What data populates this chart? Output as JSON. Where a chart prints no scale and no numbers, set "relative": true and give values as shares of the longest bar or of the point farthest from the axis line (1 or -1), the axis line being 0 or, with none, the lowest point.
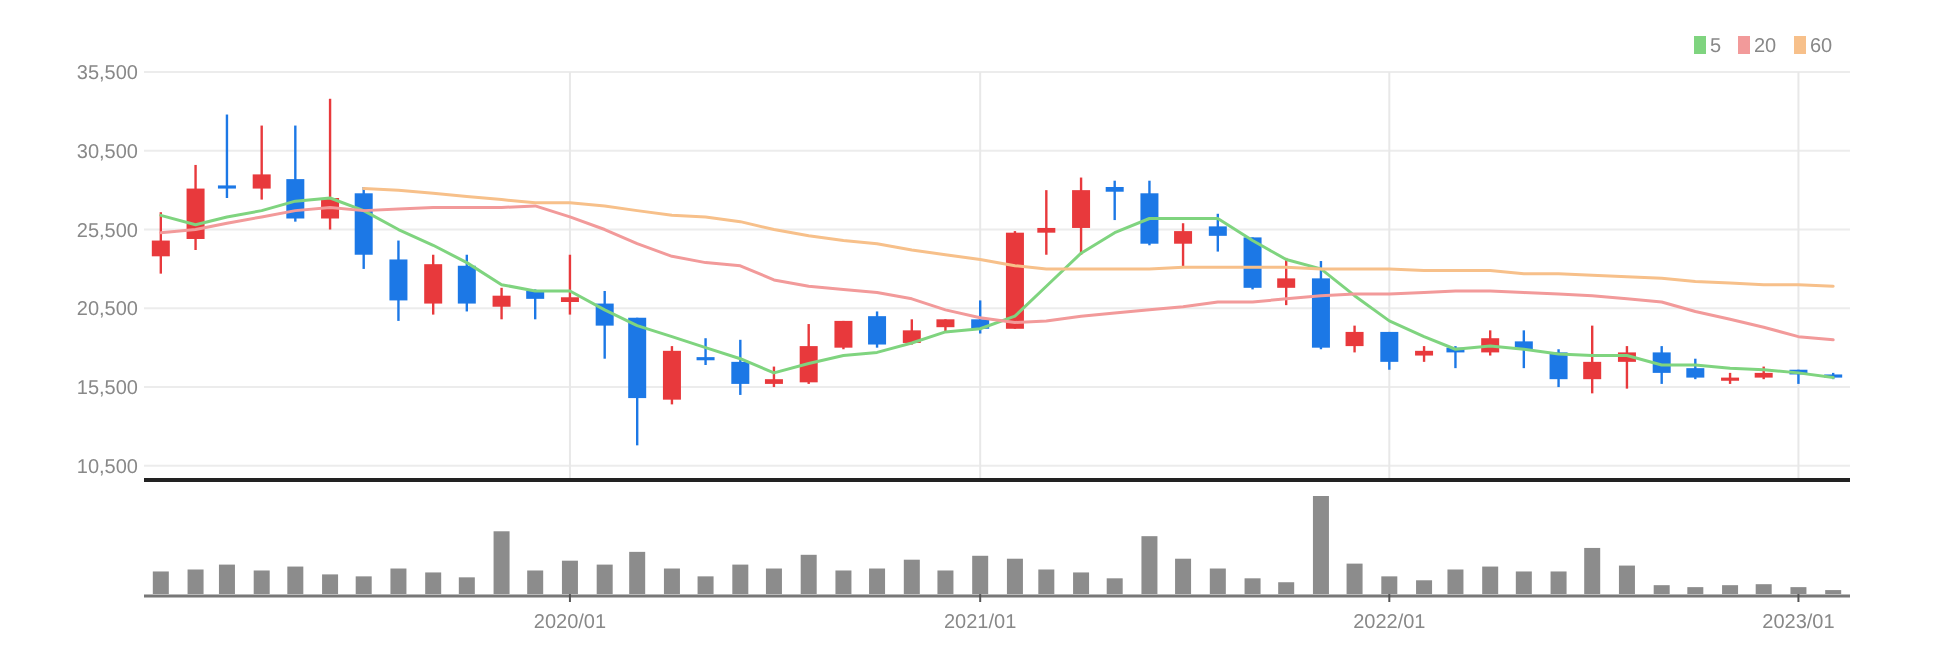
{
  "chart_data": [
    {
      "type": "candlestick",
      "x": [
        "2019-01",
        "2019-02",
        "2019-03",
        "2019-04",
        "2019-05",
        "2019-06",
        "2019-07",
        "2019-08",
        "2019-09",
        "2019-10",
        "2019-11",
        "2019-12",
        "2020-01",
        "2020-02",
        "2020-03",
        "2020-04",
        "2020-05",
        "2020-06",
        "2020-07",
        "2020-08",
        "2020-09",
        "2020-10",
        "2020-11",
        "2020-12",
        "2021-01",
        "2021-02",
        "2021-03",
        "2021-04",
        "2021-05",
        "2021-06",
        "2021-07",
        "2021-08",
        "2021-09",
        "2021-10",
        "2021-11",
        "2021-12",
        "2022-01",
        "2022-02",
        "2022-03",
        "2022-04",
        "2022-05",
        "2022-06",
        "2022-07",
        "2022-08",
        "2022-09",
        "2022-10",
        "2022-11",
        "2022-12",
        "2023-01",
        "2023-02"
      ],
      "ohlc": [
        [
          23800,
          26600,
          22700,
          24800
        ],
        [
          24900,
          29600,
          24200,
          28100
        ],
        [
          28300,
          32800,
          27500,
          28100
        ],
        [
          28100,
          32100,
          27400,
          29000
        ],
        [
          28700,
          32100,
          26000,
          26200
        ],
        [
          26200,
          33800,
          25500,
          27500
        ],
        [
          27800,
          28200,
          23000,
          23900
        ],
        [
          23600,
          24800,
          19700,
          21000
        ],
        [
          20800,
          23900,
          20100,
          23300
        ],
        [
          23200,
          23900,
          20300,
          20800
        ],
        [
          20600,
          21800,
          19800,
          21300
        ],
        [
          21600,
          21700,
          19800,
          21100
        ],
        [
          20900,
          23900,
          20100,
          21200
        ],
        [
          20800,
          21600,
          17300,
          19400
        ],
        [
          19900,
          19900,
          11800,
          14800
        ],
        [
          14700,
          18100,
          14400,
          17800
        ],
        [
          17400,
          18600,
          16900,
          17200
        ],
        [
          17100,
          18500,
          15000,
          15700
        ],
        [
          15700,
          16800,
          15500,
          16000
        ],
        [
          15800,
          19500,
          15700,
          18100
        ],
        [
          18000,
          19700,
          17900,
          19700
        ],
        [
          20000,
          20300,
          18000,
          18200
        ],
        [
          18300,
          19800,
          18200,
          19100
        ],
        [
          19300,
          19800,
          19000,
          19800
        ],
        [
          19800,
          21000,
          18900,
          19200
        ],
        [
          19200,
          25400,
          19200,
          25300
        ],
        [
          25300,
          28000,
          23900,
          25600
        ],
        [
          25600,
          28800,
          23900,
          28000
        ],
        [
          28200,
          28600,
          26100,
          27900
        ],
        [
          27800,
          28600,
          24500,
          24600
        ],
        [
          24600,
          25900,
          23100,
          25400
        ],
        [
          25700,
          26500,
          24100,
          25100
        ],
        [
          25000,
          25000,
          21700,
          21800
        ],
        [
          21800,
          23700,
          20700,
          22400
        ],
        [
          22400,
          23500,
          17900,
          18000
        ],
        [
          18100,
          19400,
          17700,
          19000
        ],
        [
          19000,
          19000,
          16600,
          17100
        ],
        [
          17500,
          18100,
          17100,
          17800
        ],
        [
          18000,
          18100,
          16700,
          17700
        ],
        [
          17700,
          19100,
          17500,
          18600
        ],
        [
          18400,
          19100,
          16700,
          17900
        ],
        [
          17700,
          17900,
          15500,
          16000
        ],
        [
          16000,
          19400,
          15100,
          17100
        ],
        [
          17100,
          18100,
          15400,
          17700
        ],
        [
          17700,
          18100,
          15700,
          16400
        ],
        [
          16700,
          17300,
          16000,
          16100
        ],
        [
          15900,
          16400,
          15700,
          16100
        ],
        [
          16100,
          16800,
          16000,
          16400
        ],
        [
          16600,
          16600,
          15700,
          16300
        ],
        [
          16300,
          16400,
          16000,
          16100
        ]
      ],
      "series": [
        {
          "type": "line",
          "name": "5",
          "color": "#7fd47f",
          "values": [
            26400,
            25800,
            26300,
            26700,
            27300,
            27500,
            26700,
            25500,
            24500,
            23400,
            22000,
            21600,
            21600,
            20400,
            19400,
            18700,
            18000,
            17300,
            16400,
            17000,
            17500,
            17700,
            18300,
            19000,
            19200,
            20000,
            21900,
            24000,
            25300,
            26200,
            26200,
            26200,
            24800,
            23600,
            23000,
            21300,
            19700,
            18700,
            17900,
            18100,
            17900,
            17600,
            17500,
            17500,
            16900,
            16900,
            16700,
            16600,
            16400,
            16100
          ]
        },
        {
          "type": "line",
          "name": "20",
          "color": "#f29a9a",
          "values": [
            25300,
            25500,
            25900,
            26300,
            26700,
            26900,
            26700,
            26800,
            26900,
            26900,
            26900,
            27000,
            26300,
            25500,
            24600,
            23800,
            23400,
            23200,
            22300,
            21900,
            21700,
            21500,
            21100,
            20400,
            19900,
            19600,
            19700,
            20000,
            20200,
            20400,
            20600,
            20900,
            20900,
            21100,
            21300,
            21400,
            21400,
            21500,
            21600,
            21600,
            21500,
            21400,
            21300,
            21100,
            20900,
            20300,
            19800,
            19300,
            18700,
            18500
          ]
        },
        {
          "type": "line",
          "name": "60",
          "color": "#f7c08a",
          "values": [
            null,
            null,
            null,
            null,
            null,
            null,
            28100,
            28000,
            27800,
            27600,
            27400,
            27200,
            27200,
            27000,
            26700,
            26400,
            26300,
            26000,
            25500,
            25100,
            24800,
            24600,
            24200,
            23900,
            23600,
            23200,
            23000,
            23000,
            23000,
            23000,
            23100,
            23100,
            23100,
            23100,
            23000,
            23000,
            23000,
            22900,
            22900,
            22900,
            22700,
            22700,
            22600,
            22500,
            22400,
            22200,
            22100,
            22000,
            22000,
            21900
          ]
        }
      ],
      "xlim": [
        "2018-12-17",
        "2023-02-16"
      ],
      "xticks": [
        {
          "value": "2020-01",
          "label": null
        },
        {
          "value": "2021-01",
          "label": null
        },
        {
          "value": "2022-01",
          "label": null
        },
        {
          "value": "2023-01",
          "label": null
        }
      ],
      "ylim": [
        9600,
        35500
      ],
      "yticks": [
        {
          "value": 10500,
          "label": "10,500"
        },
        {
          "value": 15500,
          "label": "15,500"
        },
        {
          "value": 20500,
          "label": "20,500"
        },
        {
          "value": 25500,
          "label": "25,500"
        },
        {
          "value": 30500,
          "label": "30,500"
        },
        {
          "value": 35500,
          "label": "35,500"
        }
      ],
      "grid": true,
      "legend": "top right",
      "tick_labels": "y"
    },
    {
      "type": "bar",
      "relative": true,
      "color": "#8c8c8c",
      "x": [
        "2019-01",
        "2019-02",
        "2019-03",
        "2019-04",
        "2019-05",
        "2019-06",
        "2019-07",
        "2019-08",
        "2019-09",
        "2019-10",
        "2019-11",
        "2019-12",
        "2020-01",
        "2020-02",
        "2020-03",
        "2020-04",
        "2020-05",
        "2020-06",
        "2020-07",
        "2020-08",
        "2020-09",
        "2020-10",
        "2020-11",
        "2020-12",
        "2021-01",
        "2021-02",
        "2021-03",
        "2021-04",
        "2021-05",
        "2021-06",
        "2021-07",
        "2021-08",
        "2021-09",
        "2021-10",
        "2021-11",
        "2021-12",
        "2022-01",
        "2022-02",
        "2022-03",
        "2022-04",
        "2022-05",
        "2022-06",
        "2022-07",
        "2022-08",
        "2022-09",
        "2022-10",
        "2022-11",
        "2022-12",
        "2023-01",
        "2023-02"
      ],
      "values": [
        0.23,
        0.25,
        0.3,
        0.24,
        0.28,
        0.2,
        0.18,
        0.26,
        0.22,
        0.17,
        0.64,
        0.24,
        0.34,
        0.3,
        0.43,
        0.26,
        0.18,
        0.3,
        0.26,
        0.4,
        0.24,
        0.26,
        0.35,
        0.24,
        0.39,
        0.36,
        0.25,
        0.22,
        0.16,
        0.59,
        0.36,
        0.26,
        0.16,
        0.12,
        1,
        0.31,
        0.18,
        0.14,
        0.25,
        0.28,
        0.23,
        0.23,
        0.47,
        0.29,
        0.09,
        0.07,
        0.09,
        0.1,
        0.07,
        0.04
      ],
      "xlim": [
        "2018-12-17",
        "2023-02-16"
      ],
      "xticks": [
        {
          "value": "2020-01",
          "label": "2020/01"
        },
        {
          "value": "2021-01",
          "label": "2021/01"
        },
        {
          "value": "2022-01",
          "label": "2022/01"
        },
        {
          "value": "2023-01",
          "label": "2023/01"
        }
      ],
      "tick_labels": "x"
    }
  ]
}
